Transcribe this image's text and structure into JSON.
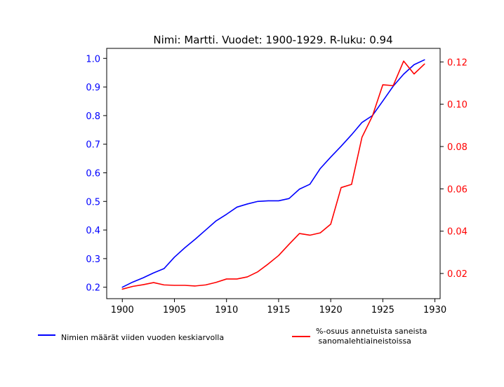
{
  "chart_data": {
    "type": "line",
    "title": "Nimi: Martti. Vuodet: 1900-1929. R-luku: 0.94",
    "xlabel": "",
    "ylabel_left": "",
    "ylabel_right": "",
    "xlim": [
      1898.5,
      1930.5
    ],
    "xticks": [
      1900,
      1905,
      1910,
      1915,
      1920,
      1925,
      1930
    ],
    "ylim_left": [
      0.16,
      1.035
    ],
    "yticks_left": [
      "0.2",
      "0.3",
      "0.4",
      "0.5",
      "0.6",
      "0.7",
      "0.8",
      "0.9",
      "1.0"
    ],
    "ylim_right": [
      0.0081,
      0.1264
    ],
    "yticks_right": [
      "0.02",
      "0.04",
      "0.06",
      "0.08",
      "0.10",
      "0.12"
    ],
    "left_axis_color": "#0000ff",
    "right_axis_color": "#ff0000",
    "grid": false,
    "legend_placement": "bottom",
    "x": [
      1900,
      1901,
      1902,
      1903,
      1904,
      1905,
      1906,
      1907,
      1908,
      1909,
      1910,
      1911,
      1912,
      1913,
      1914,
      1915,
      1916,
      1917,
      1918,
      1919,
      1920,
      1921,
      1922,
      1923,
      1924,
      1925,
      1926,
      1927,
      1928,
      1929
    ],
    "series": [
      {
        "name": "Nimien määrät viiden vuoden keskiarvolla",
        "axis": "left",
        "color": "#0000ff",
        "values": [
          0.2,
          0.218,
          0.233,
          0.25,
          0.265,
          0.305,
          0.338,
          0.368,
          0.4,
          0.432,
          0.455,
          0.48,
          0.491,
          0.5,
          0.502,
          0.502,
          0.51,
          0.543,
          0.56,
          0.615,
          0.655,
          0.693,
          0.733,
          0.776,
          0.8,
          0.851,
          0.903,
          0.945,
          0.978,
          0.995
        ]
      },
      {
        "name": "%-osuus annetuista saneista\n sanomalehtiaineistoissa",
        "axis": "right",
        "color": "#ff0000",
        "values": [
          0.0126,
          0.0139,
          0.0147,
          0.0157,
          0.0146,
          0.0144,
          0.0144,
          0.0141,
          0.0146,
          0.0158,
          0.0174,
          0.0174,
          0.0184,
          0.0208,
          0.0245,
          0.0285,
          0.0338,
          0.0389,
          0.0381,
          0.0392,
          0.0433,
          0.0606,
          0.0621,
          0.0844,
          0.0944,
          0.1092,
          0.1088,
          0.1204,
          0.1143,
          0.119
        ]
      }
    ]
  }
}
